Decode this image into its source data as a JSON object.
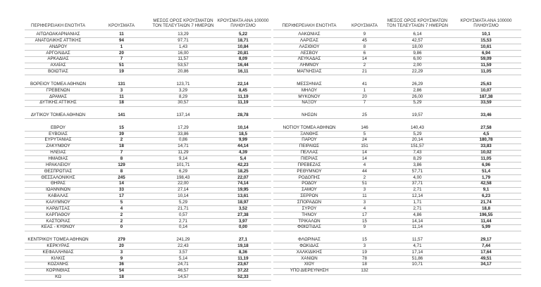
{
  "tables": [
    {
      "header": [
        "ΠΕΡΙΦΕΡΕΙΑΚΗ ΕΝΟΤΗΤΑ",
        "ΚΡΟΥΣΜΑΤΑ",
        "ΜΕΣΟΣ ΟΡΟΣ ΚΡΟΥΣΜΑΤΩΝ ΤΟΝ ΤΕΛΕΥΤΑΙΩΝ 7 ΗΜΕΡΩΝ",
        "ΚΡΟΥΣΜΑΤΑ ΑΝΑ 100000 ΠΛΗΘΥΣΜΟ"
      ],
      "groups": [
        [
          [
            "ΑΙΤΩΛΟΑΚΑΡΝΑΝΙΑΣ",
            "11",
            "13,29",
            "5,22"
          ],
          [
            "ΑΝΑΤΟΛΙΚΗΣ ΑΤΤΙΚΗΣ",
            "94",
            "97,71",
            "18,71"
          ],
          [
            "ΑΝΔΡΟΥ",
            "1",
            "1,43",
            "10,84"
          ],
          [
            "ΑΡΓΟΛΙΔΑΣ",
            "20",
            "16,00",
            "20,81"
          ],
          [
            "ΑΡΚΑΔΙΑΣ",
            "7",
            "11,57",
            "8,09"
          ],
          [
            "ΑΧΑΪΑΣ",
            "51",
            "53,57",
            "16,44"
          ],
          [
            "ΒΟΙΩΤΙΑΣ",
            "19",
            "20,86",
            "16,11"
          ]
        ],
        [
          [
            "ΒΟΡΕΙΟΥ ΤΟΜΕΑ ΑΘΗΝΩΝ",
            "131",
            "123,71",
            "22,14"
          ],
          [
            "ΓΡΕΒΕΝΩΝ",
            "3",
            "3,29",
            "8,45"
          ],
          [
            "ΔΡΑΜΑΣ",
            "11",
            "8,29",
            "11,19"
          ],
          [
            "ΔΥΤΙΚΗΣ ΑΤΤΙΚΗΣ",
            "18",
            "30,57",
            "11,19"
          ]
        ],
        [
          [
            "ΔΥΤΙΚΟΥ ΤΟΜΕΑ ΑΘΗΝΩΝ",
            "141",
            "137,14",
            "28,78"
          ]
        ],
        [
          [
            "ΕΒΡΟΥ",
            "15",
            "17,29",
            "10,14"
          ],
          [
            "ΕΥΒΟΙΑΣ",
            "39",
            "33,86",
            "18,5"
          ],
          [
            "ΕΥΡΥΤΑΝΙΑΣ",
            "2",
            "0,86",
            "9,99"
          ],
          [
            "ΖΑΚΥΝΘΟΥ",
            "18",
            "14,71",
            "44,14"
          ],
          [
            "ΗΛΕΙΑΣ",
            "7",
            "11,29",
            "4,39"
          ],
          [
            "ΗΜΑΘΙΑΣ",
            "8",
            "9,14",
            "5,4"
          ],
          [
            "ΗΡΑΚΛΕΙΟΥ",
            "129",
            "101,71",
            "42,23"
          ],
          [
            "ΘΕΣΠΡΩΤΙΑΣ",
            "8",
            "6,29",
            "18,25"
          ],
          [
            "ΘΕΣΣΑΛΟΝΙΚΗΣ",
            "245",
            "198,43",
            "22,07"
          ],
          [
            "ΘΗΡΑΣ",
            "14",
            "22,00",
            "74,14"
          ],
          [
            "ΙΩΑΝΝΙΝΩΝ",
            "33",
            "27,14",
            "19,95"
          ],
          [
            "ΚΑΒΑΛΑΣ",
            "17",
            "10,14",
            "13,61"
          ],
          [
            "ΚΑΛΥΜΝΟΥ",
            "5",
            "5,29",
            "18,97"
          ],
          [
            "ΚΑΡΔΙΤΣΑΣ",
            "4",
            "21,71",
            "3,52"
          ],
          [
            "ΚΑΡΠΑΘΟΥ",
            "2",
            "0,57",
            "27,38"
          ],
          [
            "ΚΑΣΤΟΡΙΑΣ",
            "2",
            "2,71",
            "3,97"
          ],
          [
            "ΚΕΑΣ - ΚΥΘΝΟΥ",
            "0",
            "0,14",
            "0,00"
          ]
        ],
        [
          [
            "ΚΕΝΤΡΙΚΟΥ ΤΟΜΕΑ ΑΘΗΝΩΝ",
            "279",
            "241,29",
            "27,1"
          ],
          [
            "ΚΕΡΚΥΡΑΣ",
            "20",
            "22,43",
            "19,18"
          ],
          [
            "ΚΕΦΑΛΛΗΝΙΑΣ",
            "3",
            "3,57",
            "8,36"
          ],
          [
            "ΚΙΛΚΙΣ",
            "9",
            "5,14",
            "11,19"
          ],
          [
            "ΚΟΖΑΝΗΣ",
            "36",
            "24,71",
            "23,67"
          ],
          [
            "ΚΟΡΙΝΘΙΑΣ",
            "54",
            "46,57",
            "37,22"
          ],
          [
            "ΚΩ",
            "18",
            "14,57",
            "52,33"
          ]
        ]
      ]
    },
    {
      "header": [
        "ΠΕΡΙΦΕΡΕΙΑΚΗ ΕΝΟΤΗΤΑ",
        "ΚΡΟΥΣΜΑΤΑ",
        "ΜΕΣΟΣ ΟΡΟΣ ΚΡΟΥΣΜΑΤΩΝ ΤΟΝ ΤΕΛΕΥΤΑΙΩΝ 7 ΗΜΕΡΩΝ",
        "ΚΡΟΥΣΜΑΤΑ ΑΝΑ 100000 ΠΛΗΘΥΣΜΟ"
      ],
      "groups": [
        [
          [
            "ΛΑΚΩΝΙΑΣ",
            "9",
            "6,14",
            "10,1"
          ],
          [
            "ΛΑΡΙΣΑΣ",
            "45",
            "42,57",
            "15,53"
          ],
          [
            "ΛΑΣΙΘΙΟΥ",
            "8",
            "18,00",
            "10,61"
          ],
          [
            "ΛΕΣΒΟΥ",
            "6",
            "9,86",
            "6,94"
          ],
          [
            "ΛΕΥΚΑΔΑΣ",
            "14",
            "6,00",
            "59,09"
          ],
          [
            "ΛΗΜΝΟΥ",
            "2",
            "2,00",
            "11,59"
          ],
          [
            "ΜΑΓΝΗΣΙΑΣ",
            "21",
            "22,29",
            "11,05"
          ]
        ],
        [
          [
            "ΜΕΣΣΗΝΙΑΣ",
            "41",
            "26,29",
            "25,63"
          ],
          [
            "ΜΗΛΟΥ",
            "1",
            "2,86",
            "10,07"
          ],
          [
            "ΜΥΚΟΝΟΥ",
            "20",
            "26,00",
            "187,38"
          ],
          [
            "ΝΑΞΟΥ",
            "7",
            "5,29",
            "33,59"
          ]
        ],
        [
          [
            "ΝΗΣΩΝ",
            "25",
            "19,57",
            "33,46"
          ]
        ],
        [
          [
            "ΝΟΤΙΟΥ ΤΟΜΕΑ ΑΘΗΝΩΝ",
            "146",
            "140,43",
            "27,58"
          ],
          [
            "ΞΑΝΘΗΣ",
            "5",
            "5,29",
            "4,5"
          ],
          [
            "ΠΑΡΟΥ",
            "24",
            "20,14",
            "180,78"
          ],
          [
            "ΠΕΙΡΑΙΩΣ",
            "151",
            "151,57",
            "33,83"
          ],
          [
            "ΠΕΛΛΑΣ",
            "14",
            "7,43",
            "10,02"
          ],
          [
            "ΠΙΕΡΙΑΣ",
            "14",
            "8,29",
            "11,05"
          ],
          [
            "ΠΡΕΒΕΖΑΣ",
            "4",
            "3,86",
            "6,96"
          ],
          [
            "ΡΕΘΥΜΝΟΥ",
            "44",
            "57,71",
            "51,4"
          ],
          [
            "ΡΟΔΟΠΗΣ",
            "2",
            "4,00",
            "1,79"
          ],
          [
            "ΡΟΔΟΥ",
            "51",
            "37,71",
            "42,58"
          ],
          [
            "ΣΑΜΟΥ",
            "3",
            "2,71",
            "9,1"
          ],
          [
            "ΣΕΡΡΩΝ",
            "11",
            "12,14",
            "6,23"
          ],
          [
            "ΣΠΟΡΑΔΩΝ",
            "3",
            "1,71",
            "21,74"
          ],
          [
            "ΣΥΡΟΥ",
            "4",
            "2,71",
            "18,8"
          ],
          [
            "ΤΗΝΟΥ",
            "17",
            "4,86",
            "196,55"
          ],
          [
            "ΤΡΙΚΑΛΩΝ",
            "15",
            "14,14",
            "11,44"
          ],
          [
            "ΦΘΙΩΤΙΔΑΣ",
            "9",
            "11,14",
            "5,99"
          ]
        ],
        [
          [
            "ΦΛΩΡΙΝΑΣ",
            "15",
            "11,57",
            "29,17"
          ],
          [
            "ΦΩΚΙΔΑΣ",
            "3",
            "4,71",
            "7,44"
          ],
          [
            "ΧΑΛΚΙΔΙΚΗΣ",
            "19",
            "17,14",
            "17,64"
          ],
          [
            "ΧΑΝΙΩΝ",
            "78",
            "51,86",
            "49,51"
          ],
          [
            "ΧΙΟΥ",
            "18",
            "10,71",
            "34,17"
          ],
          [
            "ΥΠΟ ΔΙΕΡΕΥΝΗΣΗ",
            "132"
          ]
        ]
      ]
    }
  ]
}
